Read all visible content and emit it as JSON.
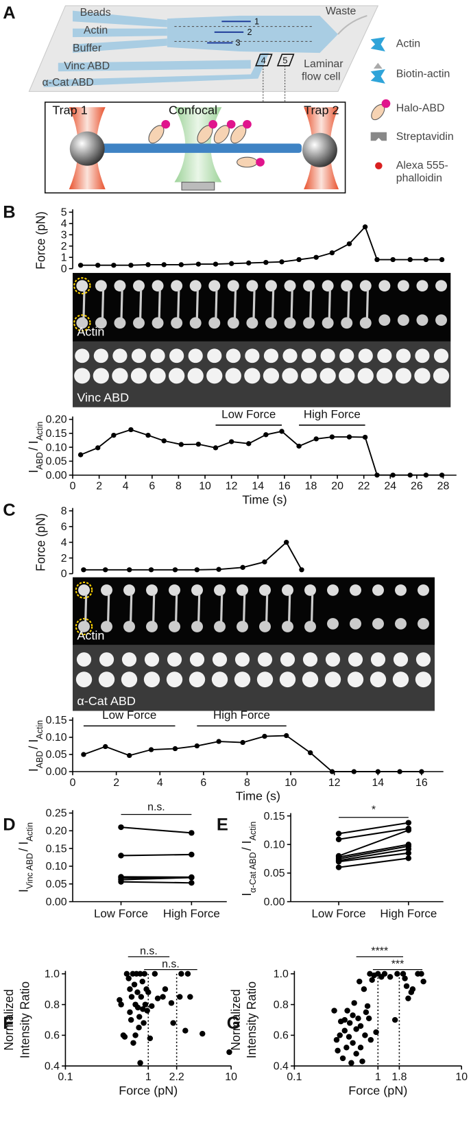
{
  "panel_a": {
    "label": "A",
    "channels": [
      "Beads",
      "Actin",
      "Buffer",
      "Vinc ABD",
      "α-Cat ABD"
    ],
    "waste": "Waste",
    "lanes": [
      "1",
      "2",
      "3"
    ],
    "windows": [
      "4",
      "5"
    ],
    "flow_cell": [
      "Laminar",
      "flow cell"
    ],
    "traps": [
      "Trap 1",
      "Trap 2"
    ],
    "confocal": "Confocal",
    "legend": [
      "Actin",
      "Biotin-actin",
      "Halo-ABD",
      "Streptavidin",
      [
        "Alexa 555-",
        "phalloidin"
      ]
    ]
  },
  "images": {
    "B": [
      "Actin",
      "Vinc ABD"
    ],
    "C": [
      "Actin",
      "α-Cat ABD"
    ]
  },
  "chart_data": [
    {
      "type": "line",
      "panel_label": "B",
      "ylabel": "Force (pN)",
      "color": "#000000",
      "x": [
        0.6,
        1.9,
        3.1,
        4.4,
        5.7,
        6.9,
        8.2,
        9.5,
        10.8,
        12.0,
        13.3,
        14.6,
        15.8,
        17.1,
        18.4,
        19.6,
        20.9,
        22.1,
        23.0,
        24.2,
        25.5,
        26.7,
        27.9
      ],
      "values": [
        0.3,
        0.3,
        0.3,
        0.3,
        0.35,
        0.35,
        0.35,
        0.4,
        0.4,
        0.45,
        0.5,
        0.55,
        0.6,
        0.8,
        1.0,
        1.4,
        2.2,
        3.7,
        0.8,
        0.8,
        0.8,
        0.8,
        0.8
      ],
      "xlim": [
        0,
        29
      ],
      "ylim": [
        0,
        5
      ],
      "yticks": [
        0,
        1,
        2,
        3,
        4,
        5
      ]
    },
    {
      "type": "line",
      "ylabel_parts": [
        "I",
        "ABD",
        "/ I",
        "Actin"
      ],
      "xlabel": "Time (s)",
      "color": "#000000",
      "x": [
        0.6,
        1.9,
        3.1,
        4.4,
        5.7,
        6.9,
        8.2,
        9.5,
        10.8,
        12.0,
        13.3,
        14.6,
        15.8,
        17.1,
        18.4,
        19.6,
        20.9,
        22.1,
        23.0,
        24.2,
        25.5,
        26.7,
        27.9
      ],
      "values": [
        0.073,
        0.098,
        0.143,
        0.163,
        0.143,
        0.123,
        0.11,
        0.111,
        0.098,
        0.12,
        0.113,
        0.145,
        0.157,
        0.104,
        0.13,
        0.137,
        0.137,
        0.136,
        0,
        0,
        0,
        0,
        0
      ],
      "xlim": [
        0,
        29
      ],
      "xticks": [
        0,
        2,
        4,
        6,
        8,
        10,
        12,
        14,
        16,
        18,
        20,
        22,
        24,
        26,
        28
      ],
      "ylim": [
        0,
        0.2
      ],
      "yticks": [
        {
          "value": 0,
          "label": "0.00"
        },
        {
          "value": 0.05,
          "label": "0.05"
        },
        {
          "value": 0.1,
          "label": "0.10"
        },
        {
          "value": 0.15,
          "label": "0.15"
        },
        {
          "value": 0.2,
          "label": "0.20"
        }
      ],
      "annotations": [
        {
          "text": "Low Force",
          "x": [
            10.8,
            15.8
          ]
        },
        {
          "text": "High Force",
          "x": [
            17.1,
            22.1
          ]
        }
      ]
    },
    {
      "type": "line",
      "panel_label": "C",
      "ylabel": "Force (pN)",
      "color": "#000000",
      "x": [
        0.5,
        1.5,
        2.6,
        3.6,
        4.7,
        5.7,
        6.7,
        7.8,
        8.8,
        9.8,
        10.5
      ],
      "values": [
        0.5,
        0.5,
        0.5,
        0.5,
        0.5,
        0.5,
        0.55,
        0.8,
        1.5,
        4.0,
        0.5
      ],
      "xlim": [
        0,
        17
      ],
      "ylim": [
        0,
        8
      ],
      "yticks": [
        0,
        2,
        4,
        6,
        8
      ]
    },
    {
      "type": "line",
      "ylabel_parts": [
        "I",
        "ABD",
        "/ I",
        "Actin"
      ],
      "xlabel": "Time (s)",
      "color": "#000000",
      "x": [
        0.5,
        1.5,
        2.6,
        3.6,
        4.7,
        5.7,
        6.7,
        7.8,
        8.8,
        9.8,
        10.9,
        11.9,
        12.9,
        14.0,
        15.0,
        16.0
      ],
      "values": [
        0.05,
        0.073,
        0.047,
        0.064,
        0.067,
        0.075,
        0.088,
        0.085,
        0.103,
        0.105,
        0.055,
        0,
        0,
        0,
        0,
        0
      ],
      "xlim": [
        0,
        17
      ],
      "xticks": [
        0,
        2,
        4,
        6,
        8,
        10,
        12,
        14,
        16
      ],
      "ylim": [
        0,
        0.15
      ],
      "yticks": [
        {
          "value": 0,
          "label": "0.00"
        },
        {
          "value": 0.05,
          "label": "0.05"
        },
        {
          "value": 0.1,
          "label": "0.10"
        },
        {
          "value": 0.15,
          "label": "0.15"
        }
      ],
      "annotations": [
        {
          "text": "Low Force",
          "x": [
            0.5,
            4.7
          ]
        },
        {
          "text": "High Force",
          "x": [
            5.7,
            9.8
          ]
        }
      ]
    },
    {
      "type": "paired",
      "panel_label": "D",
      "ylabel_parts": [
        "I",
        "Vinc ABD",
        "/ I",
        "Actin"
      ],
      "color": "#000000",
      "categories": [
        "Low Force",
        "High Force"
      ],
      "series": [
        {
          "values": [
            0.21,
            0.194
          ]
        },
        {
          "values": [
            0.13,
            0.133
          ]
        },
        {
          "values": [
            0.07,
            0.069
          ]
        },
        {
          "values": [
            0.067,
            0.068
          ]
        },
        {
          "values": [
            0.062,
            0.068
          ]
        },
        {
          "values": [
            0.056,
            0.053
          ]
        }
      ],
      "ylim": [
        0,
        0.25
      ],
      "yticks": [
        {
          "value": 0,
          "label": "0.00"
        },
        {
          "value": 0.05,
          "label": "0.05"
        },
        {
          "value": 0.1,
          "label": "0.10"
        },
        {
          "value": 0.15,
          "label": "0.15"
        },
        {
          "value": 0.2,
          "label": "0.20"
        },
        {
          "value": 0.25,
          "label": "0.25"
        }
      ],
      "significance": "n.s."
    },
    {
      "type": "paired",
      "panel_label": "E",
      "ylabel_parts": [
        "I",
        "α-Cat ABD",
        "/ I",
        "Actin"
      ],
      "color": "#000000",
      "categories": [
        "Low Force",
        "High Force"
      ],
      "series": [
        {
          "values": [
            0.119,
            0.138
          ]
        },
        {
          "values": [
            0.109,
            0.128
          ]
        },
        {
          "values": [
            0.08,
            0.125
          ]
        },
        {
          "values": [
            0.078,
            0.1
          ]
        },
        {
          "values": [
            0.075,
            0.097
          ]
        },
        {
          "values": [
            0.072,
            0.092
          ]
        },
        {
          "values": [
            0.07,
            0.085
          ]
        },
        {
          "values": [
            0.06,
            0.076
          ]
        }
      ],
      "ylim": [
        0,
        0.15
      ],
      "yticks": [
        {
          "value": 0,
          "label": "0.00"
        },
        {
          "value": 0.05,
          "label": "0.05"
        },
        {
          "value": 0.1,
          "label": "0.10"
        },
        {
          "value": 0.15,
          "label": "0.15"
        }
      ],
      "significance": "*"
    },
    {
      "type": "scatter",
      "panel_label": "F",
      "ylabel_lines": [
        "Normalized",
        "Intensity Ratio"
      ],
      "xlabel": "Force (pN)",
      "color": "#000000",
      "xscale": "log",
      "x": [
        0.45,
        0.47,
        0.5,
        0.52,
        0.55,
        0.58,
        0.6,
        0.6,
        0.62,
        0.63,
        0.65,
        0.66,
        0.68,
        0.7,
        0.7,
        0.72,
        0.74,
        0.75,
        0.77,
        0.78,
        0.8,
        0.8,
        0.82,
        0.85,
        0.86,
        0.88,
        0.9,
        0.92,
        0.95,
        0.97,
        1.0,
        1.05,
        1.1,
        1.2,
        1.3,
        1.5,
        1.6,
        1.9,
        2.0,
        2.4,
        2.5,
        2.8,
        3.0,
        3.2,
        4.5,
        9.5
      ],
      "values": [
        0.83,
        0.8,
        0.6,
        0.59,
        1.0,
        0.97,
        0.9,
        0.75,
        0.7,
        0.85,
        1.0,
        0.55,
        0.93,
        0.8,
        0.6,
        1.0,
        0.88,
        0.78,
        0.65,
        0.72,
        1.0,
        0.42,
        0.85,
        0.95,
        0.77,
        0.68,
        1.0,
        0.8,
        0.9,
        0.76,
        0.88,
        0.58,
        0.79,
        1.0,
        0.84,
        0.85,
        0.9,
        0.81,
        0.68,
        0.85,
        1.0,
        0.63,
        1.0,
        0.85,
        0.61,
        0.49
      ],
      "xlim": [
        0.1,
        10
      ],
      "xticks": [
        0.1,
        1,
        2.2,
        10
      ],
      "ylim": [
        0.4,
        1.0
      ],
      "yticks": [
        0.4,
        0.6,
        0.8,
        {
          "value": 1,
          "label": "1.0"
        }
      ],
      "refs": [
        1,
        2.2
      ],
      "brackets": [
        {
          "text": "n.s.",
          "x": [
            0.57,
            1.8
          ]
        },
        {
          "text": "n.s.",
          "x": [
            0.89,
            3.9
          ]
        }
      ]
    },
    {
      "type": "scatter",
      "panel_label": "G",
      "ylabel_lines": [
        "Normalized",
        "Intensity Ratio"
      ],
      "xlabel": "Force (pN)",
      "color": "#000000",
      "xscale": "log",
      "x": [
        0.3,
        0.32,
        0.33,
        0.35,
        0.36,
        0.38,
        0.4,
        0.4,
        0.42,
        0.43,
        0.45,
        0.46,
        0.48,
        0.5,
        0.5,
        0.52,
        0.55,
        0.55,
        0.58,
        0.6,
        0.62,
        0.62,
        0.65,
        0.68,
        0.7,
        0.72,
        0.75,
        0.78,
        0.8,
        0.82,
        0.85,
        0.9,
        0.95,
        1.0,
        1.1,
        1.2,
        1.4,
        1.6,
        1.7,
        2.0,
        2.1,
        2.2,
        2.3,
        2.5,
        2.6,
        3.0,
        3.3,
        3.5
      ],
      "values": [
        0.76,
        0.57,
        0.5,
        0.6,
        0.69,
        0.45,
        0.63,
        0.7,
        0.52,
        0.76,
        0.59,
        0.68,
        0.42,
        0.73,
        0.55,
        0.81,
        0.64,
        0.48,
        0.71,
        0.95,
        0.66,
        0.52,
        0.43,
        0.9,
        0.6,
        0.75,
        0.79,
        0.71,
        1.0,
        0.57,
        0.96,
        0.99,
        0.62,
        1.0,
        0.98,
        1.0,
        0.98,
        0.7,
        1.0,
        1.0,
        0.97,
        0.92,
        0.84,
        0.88,
        0.9,
        1.0,
        1.0,
        0.95
      ],
      "xlim": [
        0.1,
        10
      ],
      "xticks": [
        0.1,
        1,
        1.8,
        10
      ],
      "ylim": [
        0.4,
        1.0
      ],
      "yticks": [
        0.4,
        0.6,
        0.8,
        {
          "value": 1,
          "label": "1.0"
        }
      ],
      "refs": [
        1,
        1.8
      ],
      "brackets": [
        {
          "text": "****",
          "x": [
            0.55,
            2.0
          ]
        },
        {
          "text": "***",
          "x": [
            0.87,
            3.4
          ]
        }
      ]
    }
  ]
}
